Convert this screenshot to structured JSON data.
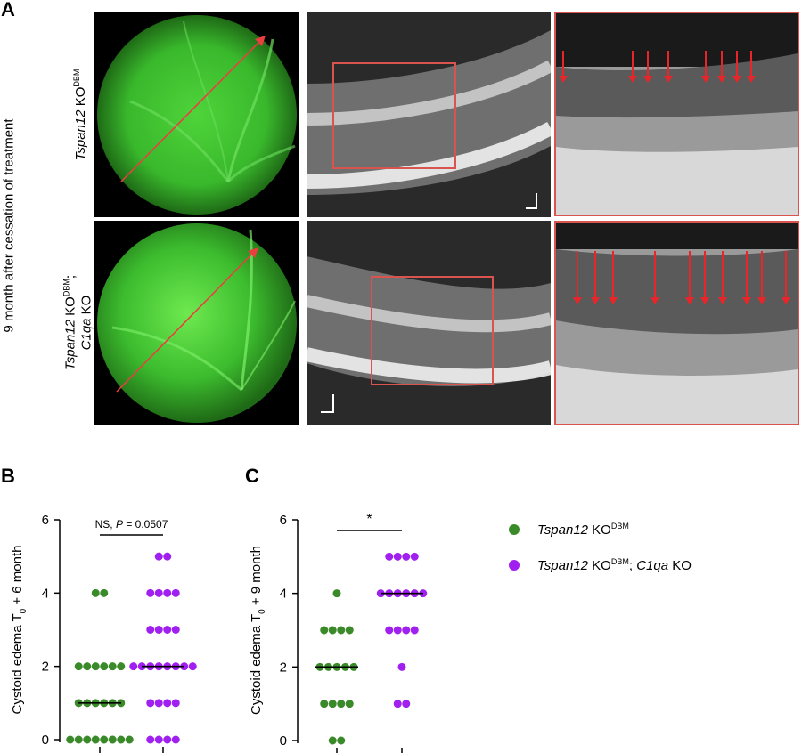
{
  "panel_labels": {
    "a": "A",
    "b": "B",
    "c": "C"
  },
  "side_title": "9 month after cessation of treatment",
  "rows": [
    {
      "gene": "Tspan12",
      "ko": " KO",
      "sup": "DBM",
      "extra": ""
    },
    {
      "gene": "Tspan12",
      "ko": " KO",
      "sup": "DBM",
      "extra": ";",
      "line2_gene": "C1qa",
      "line2_ko": " KO"
    }
  ],
  "colors": {
    "green": "#3a8a2a",
    "purple": "#a020f0",
    "frame_red": "#d9534f",
    "arrow_red": "#e8262a"
  },
  "icons": [
    "fundus-image",
    "oct-scan",
    "oct-zoom",
    "red-arrow",
    "scale-bar"
  ],
  "legend": [
    {
      "gene": "Tspan12",
      "rest": " KO",
      "sup": "DBM",
      "tail_gene": "",
      "tail": "",
      "color": "#3a8a2a"
    },
    {
      "gene": "Tspan12",
      "rest": " KO",
      "sup": "DBM",
      "tail_gene": "C1qa",
      "tail": " KO",
      "color": "#a020f0"
    }
  ],
  "chart_data": [
    {
      "type": "scatter",
      "panel": "B",
      "ylabel": "Cystoid edema T",
      "ylabel_sub": "0",
      "ylabel_tail": " + 6 month",
      "ylim": [
        0,
        6
      ],
      "yticks": [
        "0",
        "2",
        "4",
        "6"
      ],
      "annotation": "NS, ",
      "annotation_p": "P",
      "annotation_val": " = 0.0507",
      "series": [
        {
          "color": "#3a8a2a",
          "median": 1,
          "values": [
            0,
            0,
            0,
            0,
            0,
            0,
            0,
            0,
            1,
            1,
            1,
            1,
            1,
            1,
            2,
            2,
            2,
            2,
            2,
            2,
            4,
            4
          ]
        },
        {
          "color": "#a020f0",
          "median": 2,
          "values": [
            0,
            0,
            0,
            0,
            1,
            1,
            1,
            1,
            2,
            2,
            2,
            2,
            2,
            2,
            2,
            2,
            3,
            3,
            3,
            3,
            4,
            4,
            4,
            4,
            5,
            5
          ]
        }
      ]
    },
    {
      "type": "scatter",
      "panel": "C",
      "ylabel": "Cystoid edema T",
      "ylabel_sub": "0",
      "ylabel_tail": " + 9 month",
      "ylim": [
        0,
        6
      ],
      "yticks": [
        "0",
        "2",
        "4",
        "6"
      ],
      "annotation": "*",
      "series": [
        {
          "color": "#3a8a2a",
          "median": 2,
          "values": [
            0,
            0,
            1,
            1,
            1,
            1,
            2,
            2,
            2,
            2,
            2,
            3,
            3,
            3,
            3,
            4
          ]
        },
        {
          "color": "#a020f0",
          "median": 4,
          "values": [
            1,
            1,
            2,
            3,
            3,
            3,
            3,
            4,
            4,
            4,
            4,
            4,
            4,
            5,
            5,
            5,
            5
          ]
        }
      ]
    }
  ]
}
